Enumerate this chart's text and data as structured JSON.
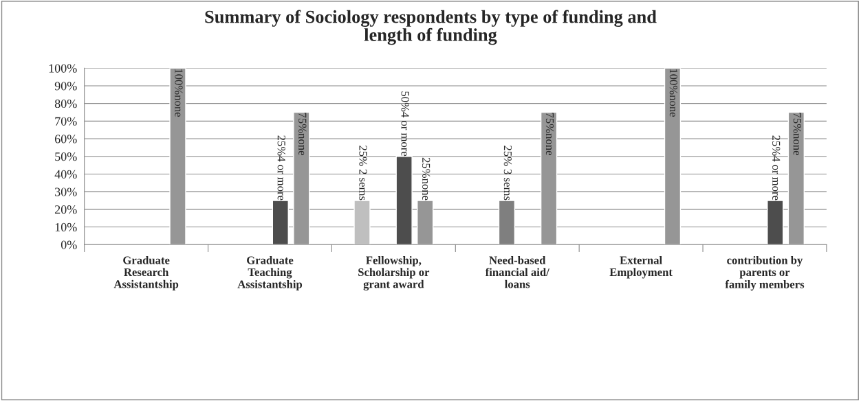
{
  "chart_data": {
    "type": "bar",
    "title": "Summary of Sociology respondents by type of funding and length of funding",
    "categories": [
      "Graduate Research Assistantship",
      "Graduate Teaching Assistantship",
      "Fellowship, Scholarship or grant award",
      "Need-based financial aid/ loans",
      "External Employment",
      "contribution by parents or family members"
    ],
    "series": [
      {
        "color": "#bfbfbf",
        "values": [
          null,
          null,
          25,
          null,
          null,
          null
        ],
        "value_labels": [
          null,
          null,
          "25% 2 sems",
          null,
          null,
          null
        ]
      },
      {
        "color": "#7f7f7f",
        "values": [
          null,
          null,
          null,
          25,
          null,
          null
        ],
        "value_labels": [
          null,
          null,
          null,
          "25% 3 sems",
          null,
          null
        ]
      },
      {
        "color": "#4d4d4d",
        "values": [
          null,
          25,
          50,
          null,
          null,
          25
        ],
        "value_labels": [
          null,
          "25%4 or more",
          "50%4 or more",
          null,
          null,
          "25%4 or more"
        ]
      },
      {
        "color": "#969696",
        "values": [
          100,
          75,
          25,
          75,
          100,
          75
        ],
        "value_labels": [
          "100%none",
          "75%none",
          "25%none",
          "75%none",
          "100%none",
          "75%none"
        ]
      }
    ],
    "ylim": [
      0,
      100
    ],
    "yticks": [
      {
        "value": 0,
        "label": "0%"
      },
      {
        "value": 10,
        "label": "10%"
      },
      {
        "value": 20,
        "label": "20%"
      },
      {
        "value": 30,
        "label": "30%"
      },
      {
        "value": 40,
        "label": "40%"
      },
      {
        "value": 50,
        "label": "50%"
      },
      {
        "value": 60,
        "label": "60%"
      },
      {
        "value": 70,
        "label": "70%"
      },
      {
        "value": 80,
        "label": "80%"
      },
      {
        "value": 90,
        "label": "90%"
      },
      {
        "value": 100,
        "label": "100%"
      }
    ],
    "grid": "y",
    "legend": false
  }
}
